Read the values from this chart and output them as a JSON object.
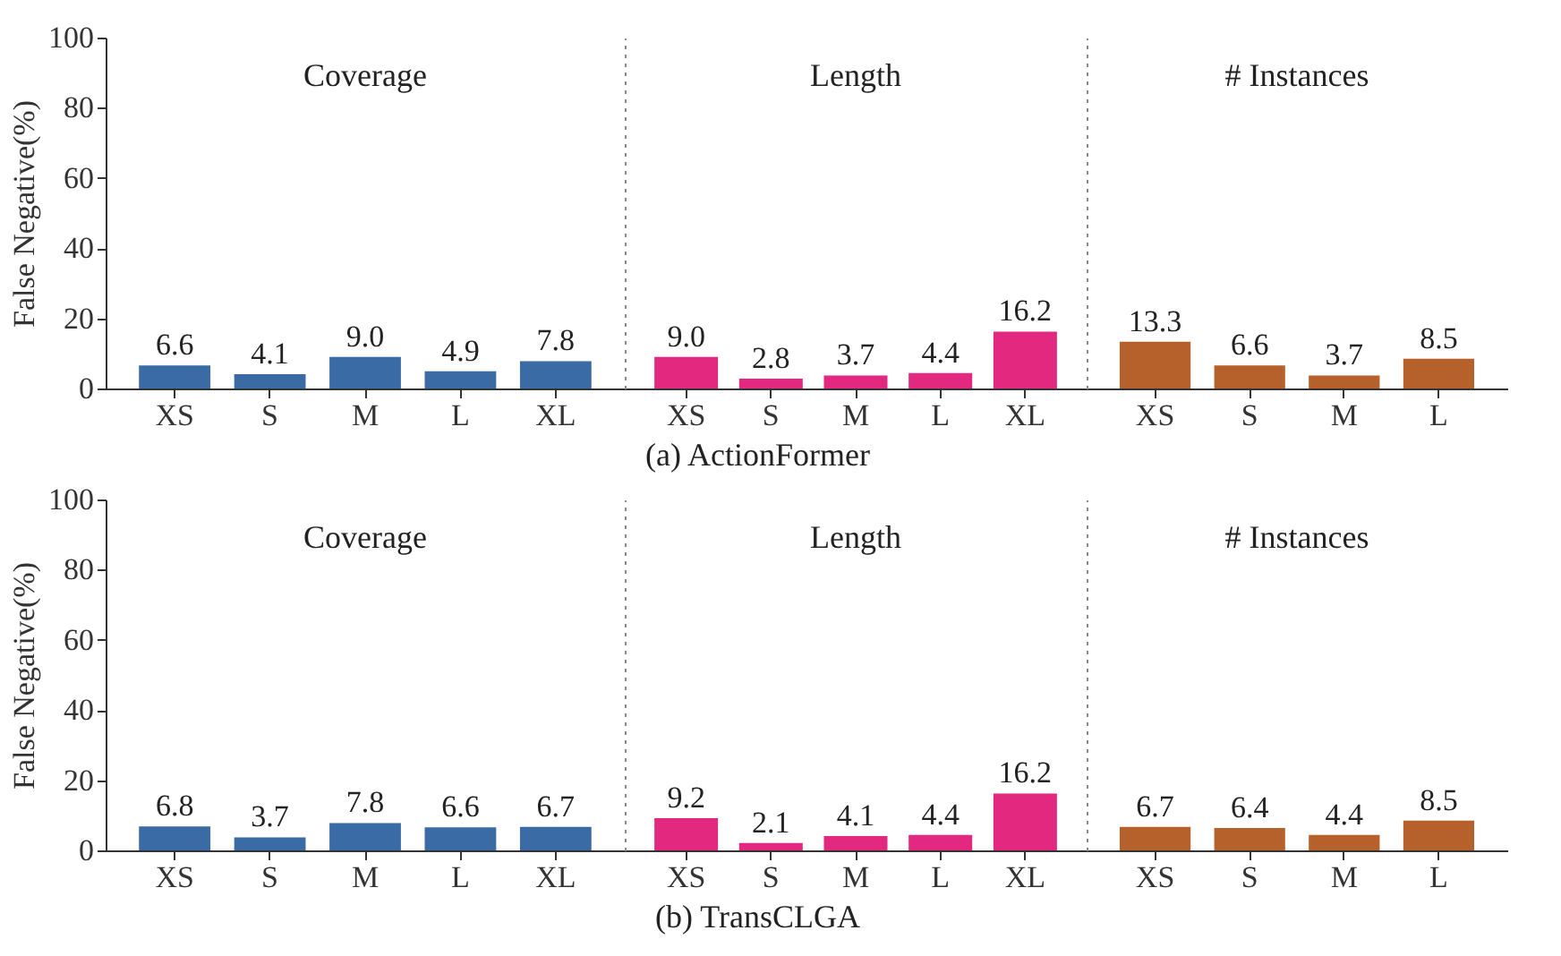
{
  "chart_data": [
    {
      "type": "bar",
      "title": "Coverage",
      "ylabel": "False Negative(%)",
      "annotations": [
        "(a)  ActionFormer"
      ],
      "categories": [
        "XS",
        "S",
        "M",
        "L",
        "XL"
      ],
      "values": [
        6.6,
        4.1,
        9.0,
        4.9,
        7.8
      ],
      "value_labels": [
        "6.6",
        "4.1",
        "9.0",
        "4.9",
        "7.8"
      ],
      "color": "#3b6ba5",
      "ylim": [
        0,
        100
      ],
      "yticks": [
        0,
        20,
        40,
        60,
        80,
        100
      ],
      "grid": false
    },
    {
      "type": "bar",
      "title": "Length",
      "categories": [
        "XS",
        "S",
        "M",
        "L",
        "XL"
      ],
      "values": [
        9.0,
        2.8,
        3.7,
        4.4,
        16.2
      ],
      "value_labels": [
        "9.0",
        "2.8",
        "3.7",
        "4.4",
        "16.2"
      ],
      "color": "#e2287f",
      "ylim": [
        0,
        100
      ],
      "tick_labels": "x",
      "grid": false
    },
    {
      "type": "bar",
      "title": "# Instances",
      "categories": [
        "XS",
        "S",
        "M",
        "L"
      ],
      "values": [
        13.3,
        6.6,
        3.7,
        8.5
      ],
      "value_labels": [
        "13.3",
        "6.6",
        "3.7",
        "8.5"
      ],
      "color": "#b6602b",
      "ylim": [
        0,
        100
      ],
      "tick_labels": "x",
      "grid": false
    },
    {
      "type": "bar",
      "title": "Coverage",
      "ylabel": "False Negative(%)",
      "annotations": [
        "(b)  TransCLGA"
      ],
      "categories": [
        "XS",
        "S",
        "M",
        "L",
        "XL"
      ],
      "values": [
        6.8,
        3.7,
        7.8,
        6.6,
        6.7
      ],
      "value_labels": [
        "6.8",
        "3.7",
        "7.8",
        "6.6",
        "6.7"
      ],
      "color": "#3b6ba5",
      "ylim": [
        0,
        100
      ],
      "yticks": [
        0,
        20,
        40,
        60,
        80,
        100
      ],
      "grid": false
    },
    {
      "type": "bar",
      "title": "Length",
      "categories": [
        "XS",
        "S",
        "M",
        "L",
        "XL"
      ],
      "values": [
        9.2,
        2.1,
        4.1,
        4.4,
        16.2
      ],
      "value_labels": [
        "9.2",
        "2.1",
        "4.1",
        "4.4",
        "16.2"
      ],
      "color": "#e2287f",
      "ylim": [
        0,
        100
      ],
      "tick_labels": "x",
      "grid": false
    },
    {
      "type": "bar",
      "title": "# Instances",
      "categories": [
        "XS",
        "S",
        "M",
        "L"
      ],
      "values": [
        6.7,
        6.4,
        4.4,
        8.5
      ],
      "value_labels": [
        "6.7",
        "6.4",
        "4.4",
        "8.5"
      ],
      "color": "#b6602b",
      "ylim": [
        0,
        100
      ],
      "tick_labels": "x",
      "grid": false
    }
  ]
}
